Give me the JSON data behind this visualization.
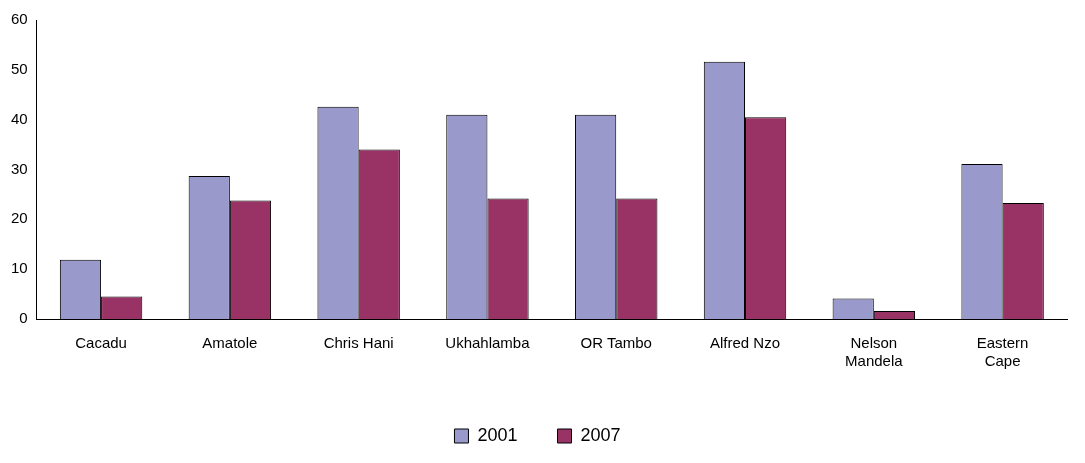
{
  "chart_data": {
    "type": "bar",
    "categories": [
      "Cacadu",
      "Amatole",
      "Chris Hani",
      "Ukhahlamba",
      "OR Tambo",
      "Alfred Nzo",
      "Nelson Mandela",
      "Eastern Cape"
    ],
    "series": [
      {
        "name": "2001",
        "color": "#9999cc",
        "values": [
          11.9,
          28.7,
          42.6,
          41,
          41,
          51.6,
          4.1,
          31.1
        ]
      },
      {
        "name": "2007",
        "color": "#993366",
        "values": [
          4.5,
          23.8,
          34,
          24.2,
          24.2,
          40.5,
          1.6,
          23.3
        ]
      }
    ],
    "ylim": [
      0,
      60
    ],
    "yticks": [
      0,
      10,
      20,
      30,
      40,
      50,
      60
    ],
    "grid": false,
    "legend": "bottom"
  }
}
